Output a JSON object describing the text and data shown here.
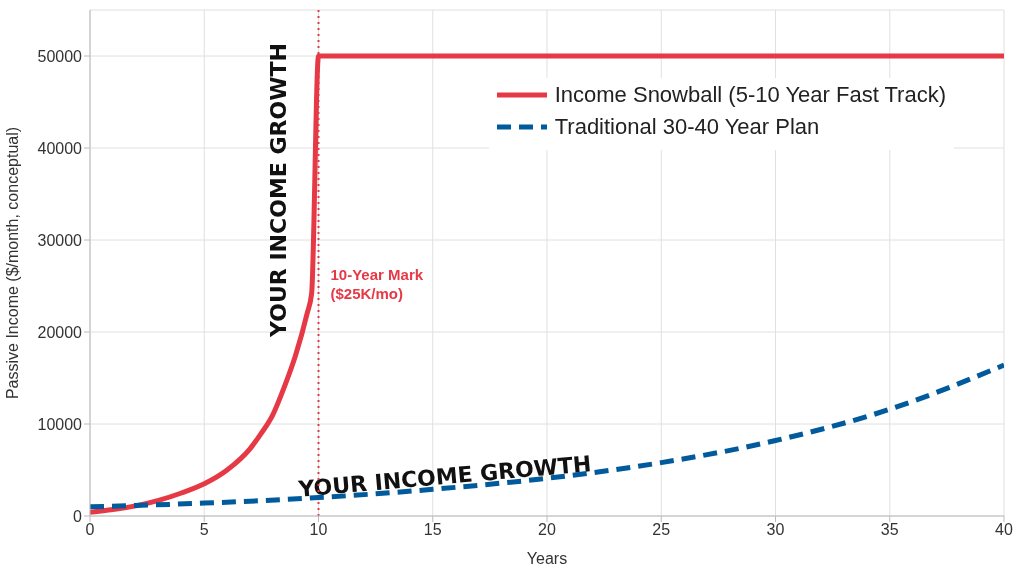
{
  "chart_data": {
    "type": "line",
    "xlabel": "Years",
    "ylabel": "Passive Income ($/month, conceptual)",
    "xlim": [
      0,
      40
    ],
    "xticks": [
      0,
      5,
      10,
      15,
      20,
      25,
      30,
      35,
      40
    ],
    "ylim": [
      0,
      55000
    ],
    "yticks": [
      0,
      10000,
      20000,
      30000,
      40000,
      50000
    ],
    "grid": true,
    "legend": "top right",
    "marker": "none",
    "series": [
      {
        "name": "Income Snowball (5-10 Year Fast Track)",
        "color": "#e63946",
        "line_style": "solid",
        "x": [
          0,
          1,
          2,
          3,
          4,
          5,
          6,
          7,
          7.5,
          8,
          8.5,
          9,
          9.5,
          9.7,
          10,
          40
        ],
        "values": [
          400,
          700,
          1100,
          1700,
          2500,
          3500,
          5000,
          7300,
          9000,
          11000,
          14000,
          17500,
          22000,
          24200,
          50000,
          50000
        ]
      },
      {
        "name": "Traditional 30-40 Year Plan",
        "color": "#005a9c",
        "line_style": "dashed",
        "x": [
          0,
          5,
          10,
          15,
          20,
          25,
          30,
          35,
          40
        ],
        "values": [
          1000,
          1400,
          2000,
          2900,
          4100,
          5800,
          8200,
          11600,
          16400
        ]
      }
    ],
    "ref_lines": [
      {
        "axis": "x",
        "value": 10,
        "label": "10-Year Mark\n($25K/mo)",
        "color": "#e63946",
        "line_style": "dotted"
      }
    ],
    "annotations": [
      "YOUR INCOME GROWTH",
      "YOUR INCOME GROWTH"
    ]
  }
}
